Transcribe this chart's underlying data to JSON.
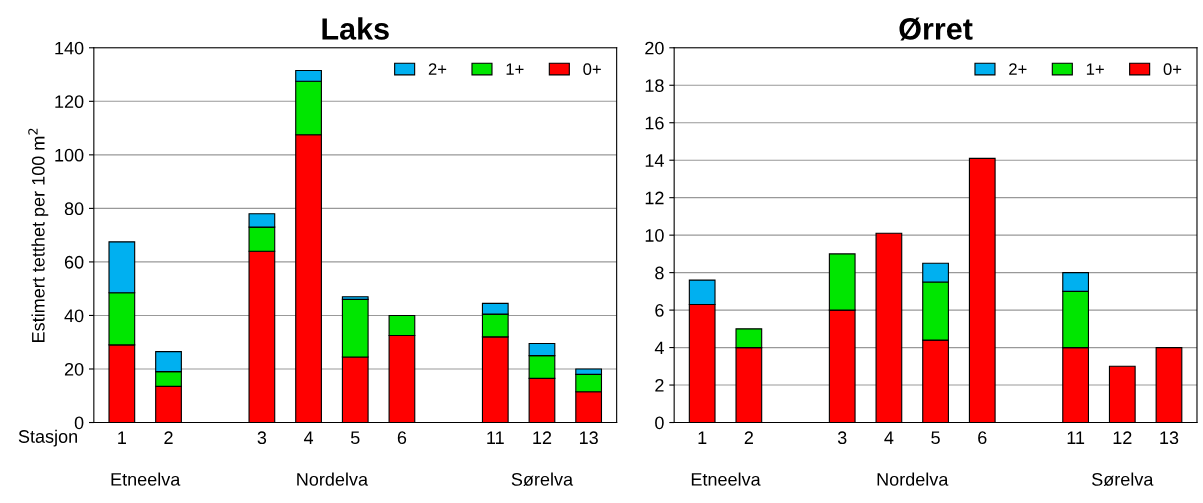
{
  "chart_data": [
    {
      "type": "bar",
      "title": "Laks",
      "ylabel": "Estimert tetthet per 100 m$^{2}$",
      "xlabel": "Stasjon",
      "stacked": true,
      "categories": [
        "1",
        "2",
        null,
        "3",
        "4",
        "5",
        "6",
        null,
        "11",
        "12",
        "13"
      ],
      "series": [
        {
          "name": "0+",
          "color": "#ff0000",
          "values": [
            29,
            13.5,
            null,
            64,
            107.5,
            24.5,
            32.5,
            null,
            32,
            16.5,
            11.5
          ]
        },
        {
          "name": "1+",
          "color": "#00e600",
          "values": [
            19.5,
            5.5,
            null,
            9,
            20,
            21.5,
            7.5,
            null,
            8.5,
            8.5,
            6.5
          ]
        },
        {
          "name": "2+",
          "color": "#00b0f0",
          "values": [
            19,
            7.5,
            null,
            5,
            4,
            1,
            null,
            null,
            4,
            4.5,
            2
          ]
        }
      ],
      "ylim": [
        0,
        140
      ],
      "yticks": [
        0,
        20,
        40,
        60,
        80,
        100,
        120,
        140
      ],
      "grid": "y",
      "legend": "top right",
      "annotations": [
        "Etneelva",
        "Nordelva",
        "Sørelva"
      ]
    },
    {
      "type": "bar",
      "title": "Ørret",
      "stacked": true,
      "categories": [
        "1",
        "2",
        null,
        "3",
        "4",
        "5",
        "6",
        null,
        "11",
        "12",
        "13"
      ],
      "series": [
        {
          "name": "0+",
          "color": "#ff0000",
          "values": [
            6.3,
            4,
            null,
            6,
            10.1,
            4.4,
            14.1,
            null,
            4,
            3,
            4
          ]
        },
        {
          "name": "1+",
          "color": "#00e600",
          "values": [
            null,
            1,
            null,
            3,
            null,
            3.1,
            null,
            null,
            3,
            null,
            null
          ]
        },
        {
          "name": "2+",
          "color": "#00b0f0",
          "values": [
            1.3,
            null,
            null,
            null,
            null,
            1,
            null,
            null,
            1,
            null,
            null
          ]
        }
      ],
      "ylim": [
        0,
        20
      ],
      "yticks": [
        0,
        2,
        4,
        6,
        8,
        10,
        12,
        14,
        16,
        18,
        20
      ],
      "grid": "y",
      "legend": "top right",
      "annotations": [
        "Etneelva",
        "Nordelva",
        "Sørelva"
      ]
    }
  ]
}
